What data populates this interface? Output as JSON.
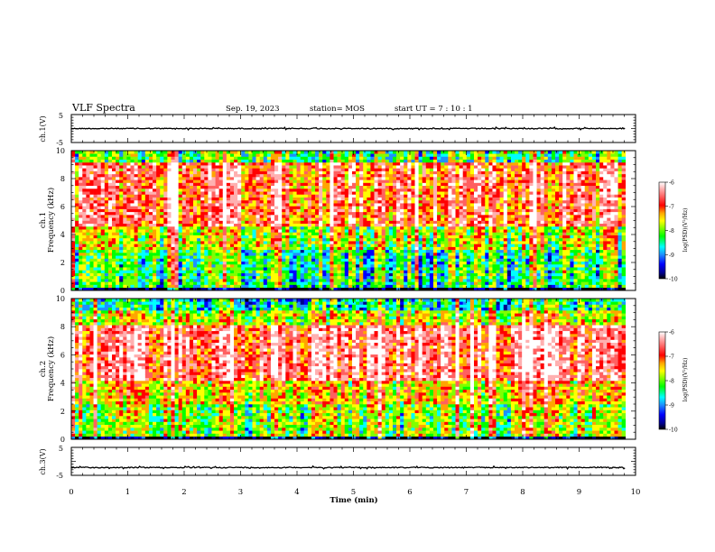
{
  "header": {
    "title": "VLF Spectra",
    "date": "Sep. 19, 2023",
    "station": "station= MOS",
    "start": "start  UT =   7 : 10 : 1"
  },
  "colors": {
    "palette": [
      "#000000",
      "#00008b",
      "#0000ff",
      "#1e90ff",
      "#00ffff",
      "#00ff00",
      "#7fff00",
      "#ffff00",
      "#ffa500",
      "#ff0000",
      "#ff6060",
      "#ffb0b0",
      "#ffffff"
    ]
  },
  "chart_data": [
    {
      "type": "line",
      "ylabel": "ch.1(V)",
      "ylim": [
        -5,
        5
      ],
      "yticks": [
        "5",
        "-5"
      ],
      "series": [
        {
          "x": [
            0,
            9.82
          ],
          "values": [
            0,
            0
          ]
        }
      ]
    },
    {
      "type": "heatmap",
      "ylabel_top": "ch.1",
      "ylabel": "Frequency (kHz)",
      "ylim": [
        0,
        10
      ],
      "yticks": [
        "0",
        "2",
        "4",
        "6",
        "8",
        "10"
      ],
      "xlim": [
        0,
        10
      ],
      "data_end": 9.82,
      "colorbar": {
        "label": "log(PSD)(V²/Hz)",
        "range": [
          -10,
          -6
        ],
        "ticks": [
          "-6",
          "-7",
          "-8",
          "-9",
          "-10"
        ]
      }
    },
    {
      "type": "heatmap",
      "ylabel_top": "ch.2",
      "ylabel": "Frequency (kHz)",
      "ylim": [
        0,
        10
      ],
      "yticks": [
        "0",
        "2",
        "4",
        "6",
        "8",
        "10"
      ],
      "xlim": [
        0,
        10
      ],
      "data_end": 9.82,
      "colorbar": {
        "label": "log(PSD)(V²/Hz)",
        "range": [
          -10,
          -6
        ],
        "ticks": [
          "-6",
          "-7",
          "-8",
          "-9",
          "-10"
        ]
      }
    },
    {
      "type": "line",
      "ylabel": "ch.3(V)",
      "ylim": [
        -5,
        5
      ],
      "yticks": [
        "5",
        "-5"
      ],
      "series": [
        {
          "x": [
            0,
            9.82
          ],
          "values": [
            -2.2,
            -2.2
          ]
        }
      ]
    }
  ],
  "xaxis": {
    "label": "Time (min)",
    "ticks": [
      "0",
      "1",
      "2",
      "3",
      "4",
      "5",
      "6",
      "7",
      "8",
      "9",
      "10"
    ],
    "xlim": [
      0,
      10
    ]
  }
}
